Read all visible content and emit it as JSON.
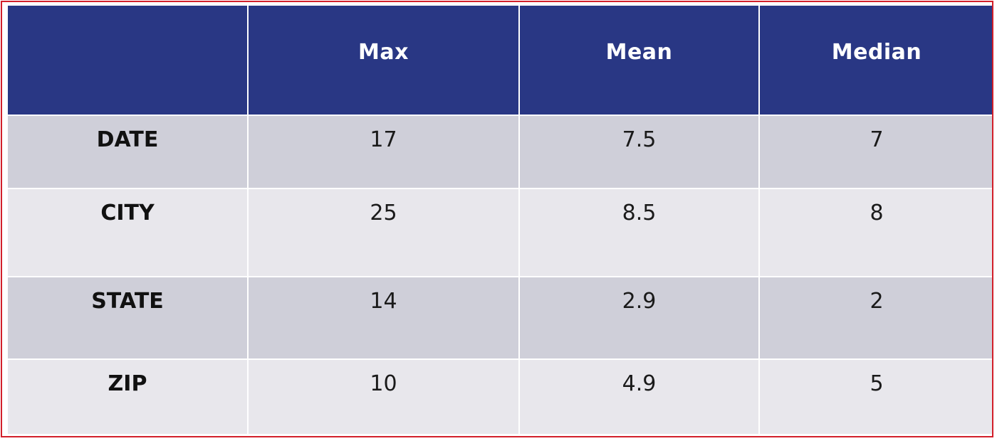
{
  "chart_data": {
    "type": "table",
    "columns": [
      "",
      "Max",
      "Mean",
      "Median"
    ],
    "rows": [
      {
        "label": "DATE",
        "max": "17",
        "mean": "7.5",
        "median": "7"
      },
      {
        "label": "CITY",
        "max": "25",
        "mean": "8.5",
        "median": "8"
      },
      {
        "label": "STATE",
        "max": "14",
        "mean": "2.9",
        "median": "2"
      },
      {
        "label": "ZIP",
        "max": "10",
        "mean": "4.9",
        "median": "5"
      }
    ],
    "colors": {
      "header_bg": "#293784",
      "header_text": "#ffffff",
      "row_band_dark": "#cfcfd9",
      "row_band_light": "#e8e7ec",
      "frame_border": "#d21f2a"
    }
  }
}
